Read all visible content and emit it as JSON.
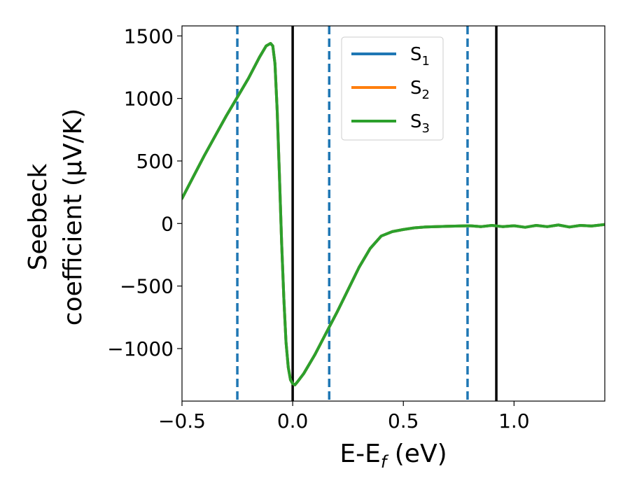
{
  "chart_data": {
    "type": "line",
    "xlabel": "E-E_f (eV)",
    "ylabel_line1": "Seebeck",
    "ylabel_line2": "coefficient  (μV/K)",
    "xlim": [
      -0.5,
      1.41
    ],
    "ylim": [
      -1420,
      1580
    ],
    "xticks": [
      -0.5,
      0.0,
      0.5,
      1.0
    ],
    "xtick_labels": [
      "−0.5",
      "0.0",
      "0.5",
      "1.0"
    ],
    "yticks": [
      -1000,
      -500,
      0,
      500,
      1000,
      1500
    ],
    "ytick_labels": [
      "−1000",
      "−500",
      "0",
      "500",
      "1000",
      "1500"
    ],
    "grid": false,
    "legend_position": "upper-center",
    "vertical_lines": [
      {
        "x": -0.25,
        "style": "dashed",
        "color": "#1f77b4"
      },
      {
        "x": 0.0,
        "style": "solid",
        "color": "#000000"
      },
      {
        "x": 0.165,
        "style": "dashed",
        "color": "#1f77b4"
      },
      {
        "x": 0.79,
        "style": "dashed",
        "color": "#1f77b4"
      },
      {
        "x": 0.92,
        "style": "solid",
        "color": "#000000"
      }
    ],
    "series": [
      {
        "name": "S",
        "sub": "1",
        "color": "#1f77b4"
      },
      {
        "name": "S",
        "sub": "2",
        "color": "#ff7f0e"
      },
      {
        "name": "S",
        "sub": "3",
        "color": "#2ca02c"
      }
    ],
    "x": [
      -0.5,
      -0.45,
      -0.4,
      -0.35,
      -0.3,
      -0.25,
      -0.2,
      -0.15,
      -0.12,
      -0.1,
      -0.09,
      -0.08,
      -0.07,
      -0.06,
      -0.05,
      -0.04,
      -0.03,
      -0.02,
      -0.01,
      0.0,
      0.01,
      0.02,
      0.05,
      0.1,
      0.15,
      0.2,
      0.25,
      0.3,
      0.35,
      0.4,
      0.45,
      0.5,
      0.55,
      0.6,
      0.7,
      0.8,
      0.85,
      0.9,
      0.95,
      1.0,
      1.05,
      1.1,
      1.15,
      1.2,
      1.25,
      1.3,
      1.35,
      1.41
    ],
    "y": [
      200,
      370,
      540,
      700,
      860,
      1010,
      1160,
      1330,
      1420,
      1440,
      1420,
      1280,
      900,
      400,
      -150,
      -600,
      -950,
      -1150,
      -1250,
      -1280,
      -1290,
      -1270,
      -1200,
      -1050,
      -880,
      -710,
      -530,
      -350,
      -200,
      -100,
      -65,
      -48,
      -35,
      -28,
      -22,
      -18,
      -25,
      -15,
      -25,
      -18,
      -30,
      -15,
      -25,
      -12,
      -28,
      -15,
      -20,
      -8
    ],
    "y_S2": [
      200,
      370,
      540,
      700,
      860,
      1010,
      1160,
      1330,
      1420,
      1440,
      1420,
      1280,
      900,
      400,
      -150,
      -600,
      -950,
      -1150,
      -1250,
      -1280,
      -1290,
      -1270,
      -1200,
      -1050,
      -880,
      -710,
      -530,
      -350,
      -200,
      -100,
      -65,
      -48,
      -35,
      -28,
      -22,
      -18,
      -25,
      -15,
      -25,
      -18,
      -30,
      -15,
      -25,
      -12,
      -28,
      -15,
      -20,
      -8
    ],
    "y_S3": [
      200,
      370,
      540,
      700,
      860,
      1010,
      1160,
      1330,
      1420,
      1440,
      1420,
      1280,
      900,
      400,
      -150,
      -600,
      -950,
      -1150,
      -1250,
      -1280,
      -1290,
      -1270,
      -1200,
      -1050,
      -880,
      -710,
      -530,
      -350,
      -200,
      -100,
      -65,
      -48,
      -35,
      -28,
      -22,
      -18,
      -25,
      -15,
      -25,
      -18,
      -30,
      -15,
      -25,
      -12,
      -28,
      -15,
      -20,
      -8
    ]
  }
}
